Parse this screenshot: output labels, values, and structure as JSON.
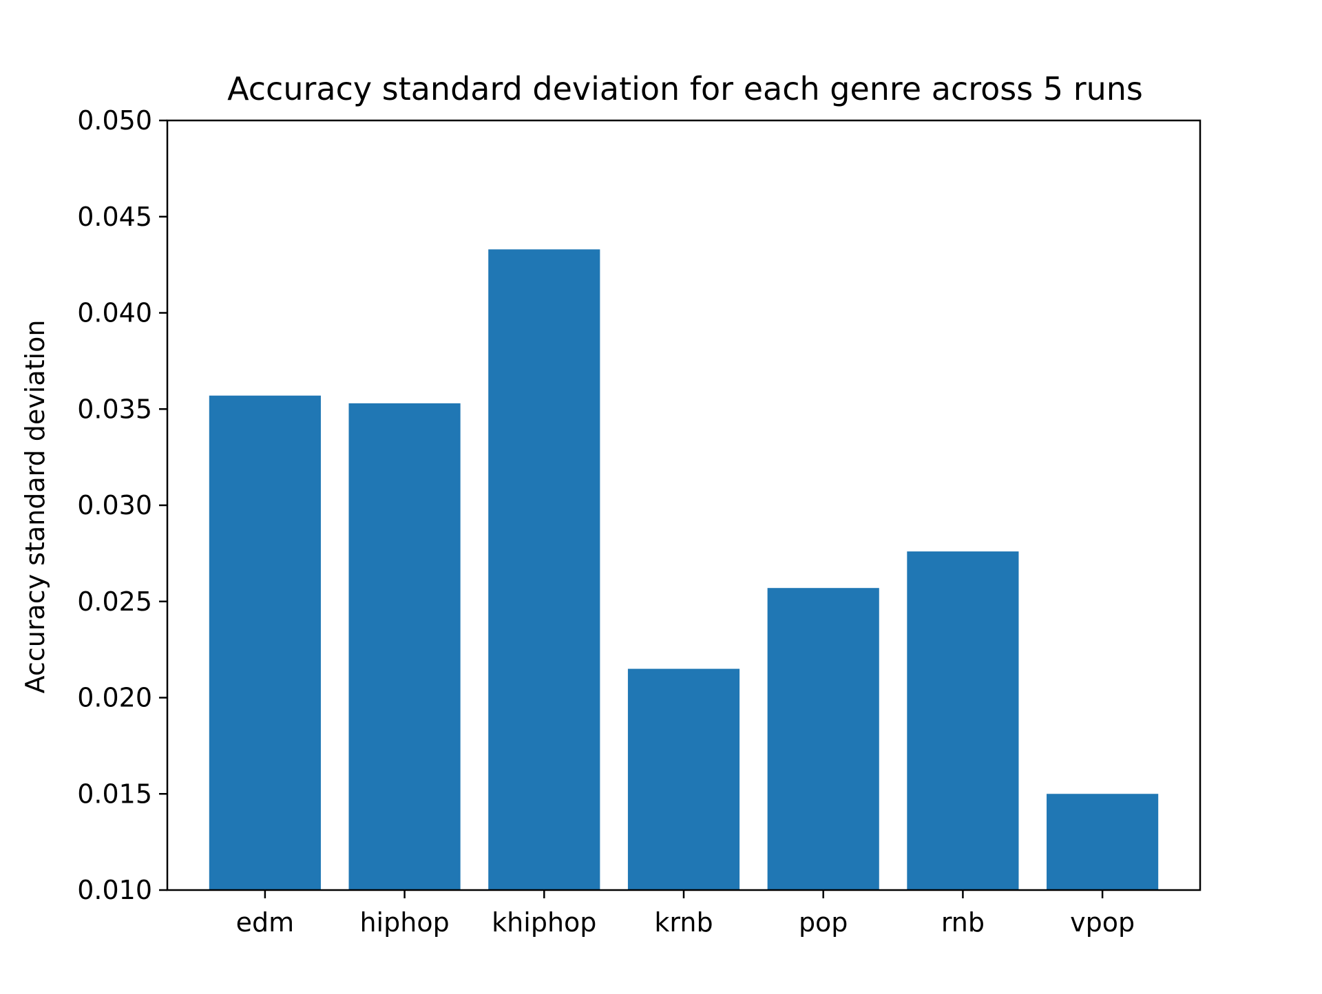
{
  "chart_data": {
    "type": "bar",
    "title": "Accuracy standard deviation for each genre across 5 runs",
    "xlabel": "",
    "ylabel": "Accuracy standard deviation",
    "categories": [
      "edm",
      "hiphop",
      "khiphop",
      "krnb",
      "pop",
      "rnb",
      "vpop"
    ],
    "values": [
      0.0357,
      0.0353,
      0.0433,
      0.0215,
      0.0257,
      0.0276,
      0.015
    ],
    "ylim": [
      0.01,
      0.05
    ],
    "yticks": [
      "0.010",
      "0.015",
      "0.020",
      "0.025",
      "0.030",
      "0.035",
      "0.040",
      "0.045",
      "0.050"
    ],
    "grid": false,
    "legend": "none",
    "colors": {
      "bar": "#2077b4",
      "axis": "#000000"
    }
  }
}
